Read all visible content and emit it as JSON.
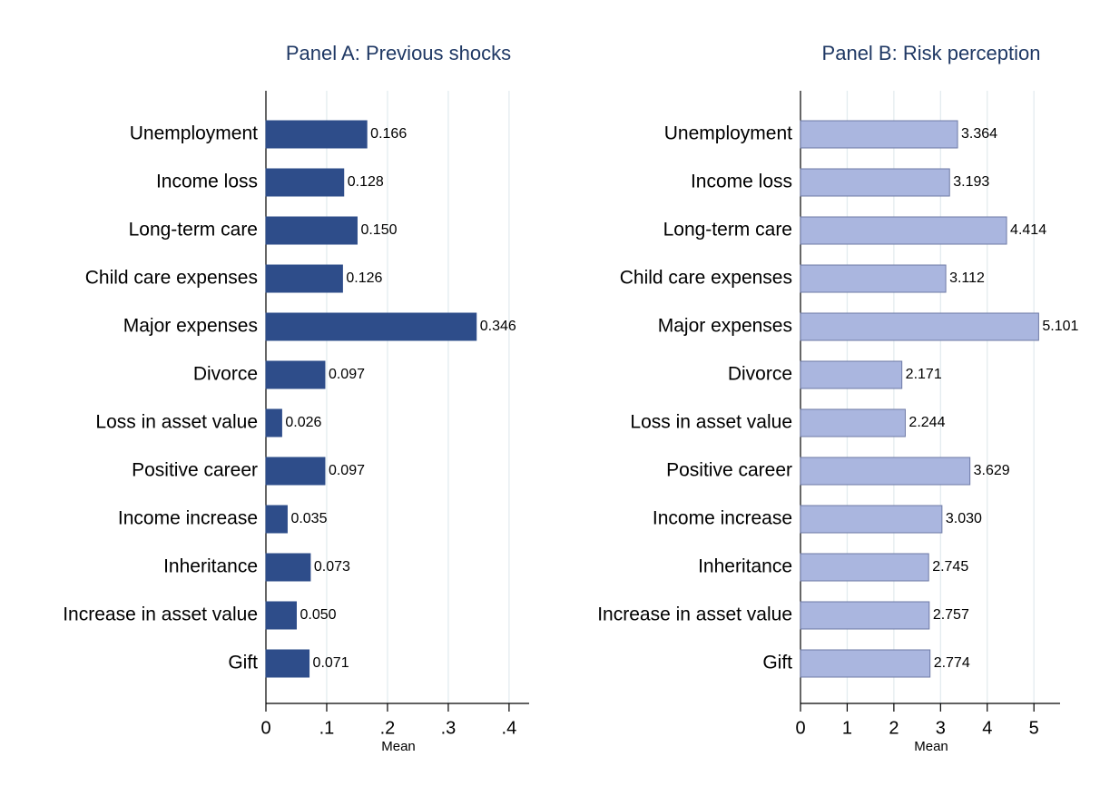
{
  "chart_data": [
    {
      "type": "barh",
      "title": "Panel A: Previous shocks",
      "x_label": "Mean",
      "color": "#2e4d8a",
      "edge_color": "#2e4d8a",
      "grid": true,
      "categories": [
        "Unemployment",
        "Income loss",
        "Long-term care",
        "Child care expenses",
        "Major expenses",
        "Divorce",
        "Loss in asset value",
        "Positive career",
        "Income increase",
        "Inheritance",
        "Increase in asset value",
        "Gift"
      ],
      "values": [
        0.166,
        0.128,
        0.15,
        0.126,
        0.346,
        0.097,
        0.026,
        0.097,
        0.035,
        0.073,
        0.05,
        0.071
      ],
      "value_labels": [
        "0.166",
        "0.128",
        "0.150",
        "0.126",
        "0.346",
        "0.097",
        "0.026",
        "0.097",
        "0.035",
        "0.073",
        "0.050",
        "0.071"
      ],
      "xlim": [
        0,
        0.433
      ],
      "xticks": [
        0,
        {
          "value": 0.1,
          "label": ".1"
        },
        {
          "value": 0.2,
          "label": ".2"
        },
        {
          "value": 0.3,
          "label": ".3"
        },
        {
          "value": 0.4,
          "label": ".4"
        }
      ]
    },
    {
      "type": "barh",
      "title": "Panel B: Risk perception",
      "x_label": "Mean",
      "color": "#aab6df",
      "edge_color": "#6e7aa6",
      "grid": true,
      "categories": [
        "Unemployment",
        "Income loss",
        "Long-term care",
        "Child care expenses",
        "Major expenses",
        "Divorce",
        "Loss in asset value",
        "Positive career",
        "Income increase",
        "Inheritance",
        "Increase in asset value",
        "Gift"
      ],
      "values": [
        3.364,
        3.193,
        4.414,
        3.112,
        5.101,
        2.171,
        2.244,
        3.629,
        3.03,
        2.745,
        2.757,
        2.774
      ],
      "value_labels": [
        "3.364",
        "3.193",
        "4.414",
        "3.112",
        "5.101",
        "2.171",
        "2.244",
        "3.629",
        "3.030",
        "2.745",
        "2.757",
        "2.774"
      ],
      "xlim": [
        0,
        5.56
      ],
      "xticks": [
        0,
        1,
        2,
        3,
        4,
        5
      ]
    }
  ]
}
